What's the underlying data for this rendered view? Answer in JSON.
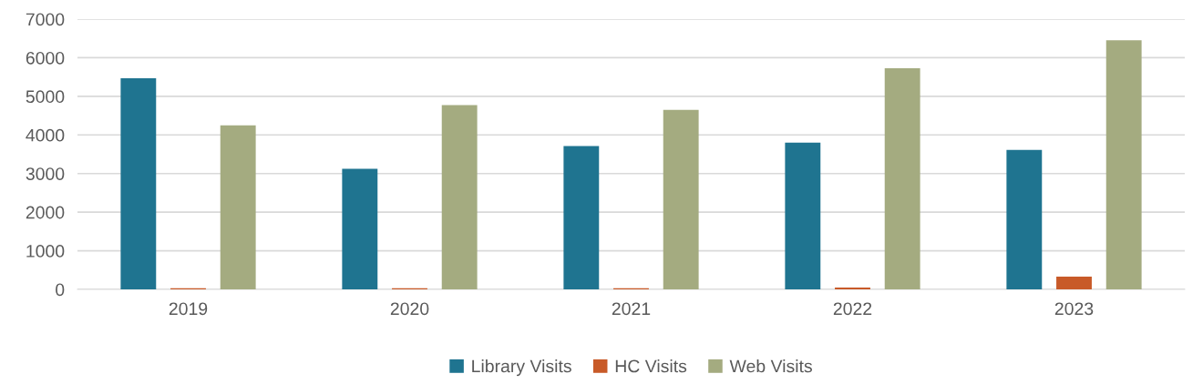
{
  "chart_data": {
    "type": "bar",
    "categories": [
      "2019",
      "2020",
      "2021",
      "2022",
      "2023"
    ],
    "series": [
      {
        "name": "Library Visits",
        "color": "#1f7490",
        "values": [
          5470,
          3120,
          3710,
          3800,
          3610
        ]
      },
      {
        "name": "HC Visits",
        "color": "#c85a28",
        "values": [
          30,
          30,
          30,
          50,
          330
        ]
      },
      {
        "name": "Web Visits",
        "color": "#a4ab80",
        "values": [
          4250,
          4770,
          4650,
          5730,
          6450
        ]
      }
    ],
    "ylim": [
      0,
      7000
    ],
    "yticks": [
      0,
      1000,
      2000,
      3000,
      4000,
      5000,
      6000,
      7000
    ],
    "grid": "y",
    "legend": "bottom"
  }
}
